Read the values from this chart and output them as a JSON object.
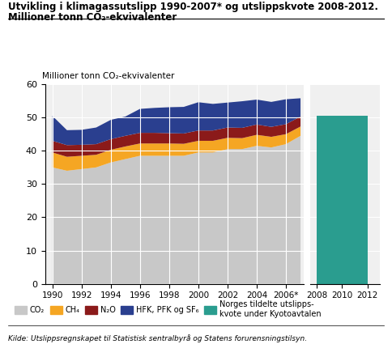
{
  "title_line1": "Utvikling i klimagassutslipp 1990-2007* og utslippskvote 2008-2012.",
  "title_line2": "Millioner tonn CO₂-ekvivalenter",
  "ylabel": "Millioner tonn CO₂-ekvivalenter",
  "years": [
    1990,
    1991,
    1992,
    1993,
    1994,
    1995,
    1996,
    1997,
    1998,
    1999,
    2000,
    2001,
    2002,
    2003,
    2004,
    2005,
    2006,
    2007
  ],
  "CO2": [
    35.0,
    34.0,
    34.5,
    35.0,
    36.5,
    37.5,
    38.5,
    38.5,
    38.5,
    38.5,
    39.5,
    39.5,
    40.5,
    40.5,
    41.5,
    41.0,
    42.0,
    44.5
  ],
  "CH4": [
    4.5,
    4.2,
    4.0,
    3.8,
    3.8,
    3.8,
    3.7,
    3.7,
    3.7,
    3.6,
    3.5,
    3.5,
    3.4,
    3.3,
    3.3,
    3.2,
    3.0,
    2.8
  ],
  "N2O": [
    3.5,
    3.5,
    3.3,
    3.2,
    3.2,
    3.2,
    3.2,
    3.2,
    3.1,
    3.1,
    3.1,
    3.1,
    3.1,
    3.1,
    3.1,
    3.0,
    3.0,
    3.0
  ],
  "HFK": [
    7.5,
    4.5,
    4.5,
    5.0,
    5.8,
    5.8,
    7.2,
    7.5,
    7.8,
    8.0,
    8.5,
    8.0,
    7.5,
    8.0,
    7.5,
    7.5,
    7.5,
    5.5
  ],
  "quota_value": 50.5,
  "color_CO2": "#c8c8c8",
  "color_CH4": "#f5a623",
  "color_N2O": "#8b1a1a",
  "color_HFK": "#2a3f8f",
  "color_quota": "#2a9d8f",
  "ylim": [
    0,
    60
  ],
  "source_text": "Kilde: Utslippsregnskapet til Statistisk sentralbyrå og Statens forurensningstilsyn.",
  "legend_CO2": "CO₂",
  "legend_CH4": "CH₄",
  "legend_N2O": "N₂O",
  "legend_HFK": "HFK, PFK og SF₆",
  "legend_quota": "Norges tildelte utslipps-\nkvote under Kyotoavtalen"
}
